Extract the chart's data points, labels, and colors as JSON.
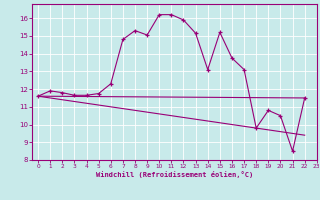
{
  "xlabel": "Windchill (Refroidissement éolien,°C)",
  "xlim": [
    -0.5,
    23
  ],
  "ylim": [
    8,
    16.8
  ],
  "yticks": [
    8,
    9,
    10,
    11,
    12,
    13,
    14,
    15,
    16
  ],
  "xticks": [
    0,
    1,
    2,
    3,
    4,
    5,
    6,
    7,
    8,
    9,
    10,
    11,
    12,
    13,
    14,
    15,
    16,
    17,
    18,
    19,
    20,
    21,
    22,
    23
  ],
  "bg_color": "#c8eaea",
  "grid_color": "#ffffff",
  "line_color": "#990077",
  "line1_x": [
    0,
    1,
    2,
    3,
    4,
    5,
    6,
    7,
    8,
    9,
    10,
    11,
    12,
    13,
    14,
    15,
    16,
    17,
    18,
    19,
    20,
    21,
    22
  ],
  "line1_y": [
    11.6,
    11.9,
    11.8,
    11.65,
    11.65,
    11.75,
    12.3,
    14.8,
    15.3,
    15.05,
    16.2,
    16.2,
    15.9,
    15.15,
    13.1,
    15.2,
    13.75,
    13.1,
    9.8,
    10.8,
    10.5,
    8.5,
    11.5
  ],
  "line2_x": [
    0,
    22
  ],
  "line2_y": [
    11.6,
    11.5
  ],
  "line3_x": [
    0,
    22
  ],
  "line3_y": [
    11.6,
    9.4
  ]
}
